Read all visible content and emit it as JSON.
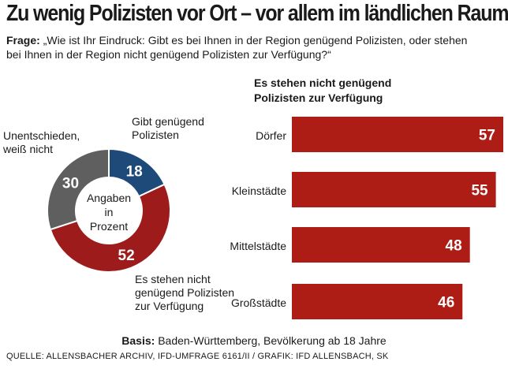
{
  "headline": "Zu wenig Polizisten vor Ort – vor allem im ländlichen Raum",
  "question": {
    "lead": "Frage:",
    "line1": "„Wie ist Ihr Eindruck: Gibt es bei Ihnen in der Region genügend Polizisten, oder stehen",
    "line2": "bei Ihnen in der Region nicht genügend Polizisten zur Verfügung?“"
  },
  "donut": {
    "center_line1": "Angaben",
    "center_line2": "in Prozent"
  },
  "bars": {
    "title_line1": "Es stehen nicht genügend",
    "title_line2": "Polizisten zur Verfügung"
  },
  "base": {
    "lead": "Basis:",
    "text": "Baden-Württemberg, Bevölkerung ab 18 Jahre"
  },
  "source": "QUELLE: ALLENSBACHER ARCHIV, IFD-UMFRAGE 6161/II  /  GRAFIK: IFD ALLENSBACH, SK",
  "chart_data": [
    {
      "type": "pie",
      "title": "Angaben in Prozent",
      "slices": [
        {
          "label_line1": "Gibt genügend",
          "label_line2": "Polizisten",
          "label_line3": "",
          "value": 18,
          "color": "#1e4a7a"
        },
        {
          "label_line1": "Es stehen nicht",
          "label_line2": "genügend Polizisten",
          "label_line3": "zur Verfügung",
          "value": 52,
          "color": "#9e1b1b"
        },
        {
          "label_line1": "Unentschieden,",
          "label_line2": "weiß nicht",
          "label_line3": "",
          "value": 30,
          "color": "#5f5f5f"
        }
      ]
    },
    {
      "type": "bar",
      "orientation": "horizontal",
      "title": "Es stehen nicht genügend Polizisten zur Verfügung",
      "categories": [
        "Dörfer",
        "Kleinstädte",
        "Mittelstädte",
        "Großstädte"
      ],
      "values": [
        57,
        55,
        48,
        46
      ],
      "color": "#ad1d16",
      "xlim": [
        0,
        57
      ]
    }
  ]
}
